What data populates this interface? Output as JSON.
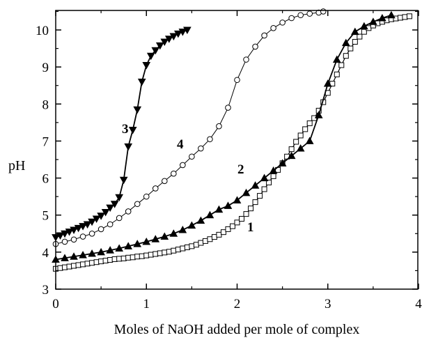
{
  "chart_data": {
    "type": "line",
    "xlabel": "Moles of NaOH added per mole of complex",
    "ylabel": "pH",
    "xlim": [
      0,
      4
    ],
    "ylim": [
      3,
      10.5
    ],
    "x_ticks": [
      "0",
      "1",
      "2",
      "3",
      "4"
    ],
    "y_ticks": [
      "3",
      "4",
      "5",
      "6",
      "7",
      "8",
      "9",
      "10"
    ],
    "grid": false,
    "series": [
      {
        "name": "1",
        "marker": "open-square",
        "color": "#000000",
        "x": [
          0.0,
          0.05,
          0.1,
          0.15,
          0.2,
          0.25,
          0.3,
          0.35,
          0.4,
          0.45,
          0.5,
          0.55,
          0.6,
          0.65,
          0.7,
          0.75,
          0.8,
          0.85,
          0.9,
          0.95,
          1.0,
          1.05,
          1.1,
          1.15,
          1.2,
          1.25,
          1.3,
          1.35,
          1.4,
          1.45,
          1.5,
          1.55,
          1.6,
          1.65,
          1.7,
          1.75,
          1.8,
          1.85,
          1.9,
          1.95,
          2.0,
          2.05,
          2.1,
          2.15,
          2.2,
          2.25,
          2.3,
          2.35,
          2.4,
          2.45,
          2.5,
          2.55,
          2.6,
          2.65,
          2.7,
          2.75,
          2.8,
          2.85,
          2.9,
          2.95,
          3.0,
          3.05,
          3.1,
          3.15,
          3.2,
          3.25,
          3.3,
          3.35,
          3.4,
          3.45,
          3.5,
          3.55,
          3.6,
          3.65,
          3.7,
          3.75,
          3.8,
          3.85,
          3.9
        ],
        "y": [
          3.55,
          3.57,
          3.59,
          3.61,
          3.63,
          3.65,
          3.67,
          3.69,
          3.71,
          3.73,
          3.75,
          3.77,
          3.79,
          3.81,
          3.82,
          3.83,
          3.85,
          3.86,
          3.88,
          3.89,
          3.91,
          3.93,
          3.95,
          3.97,
          3.99,
          4.01,
          4.04,
          4.07,
          4.1,
          4.13,
          4.16,
          4.2,
          4.25,
          4.3,
          4.35,
          4.41,
          4.47,
          4.54,
          4.62,
          4.7,
          4.8,
          4.9,
          5.03,
          5.18,
          5.35,
          5.52,
          5.7,
          5.88,
          6.05,
          6.22,
          6.4,
          6.58,
          6.78,
          6.98,
          7.15,
          7.32,
          7.48,
          7.62,
          7.82,
          8.05,
          8.3,
          8.55,
          8.8,
          9.05,
          9.3,
          9.5,
          9.68,
          9.82,
          9.95,
          10.05,
          10.12,
          10.18,
          10.22,
          10.26,
          10.29,
          10.31,
          10.33,
          10.35,
          10.37
        ]
      },
      {
        "name": "2",
        "marker": "filled-triangle-up",
        "color": "#000000",
        "x": [
          0.0,
          0.1,
          0.2,
          0.3,
          0.4,
          0.5,
          0.6,
          0.7,
          0.8,
          0.9,
          1.0,
          1.1,
          1.2,
          1.3,
          1.4,
          1.5,
          1.6,
          1.7,
          1.8,
          1.9,
          2.0,
          2.1,
          2.2,
          2.3,
          2.4,
          2.5,
          2.6,
          2.7,
          2.8,
          2.9,
          3.0,
          3.1,
          3.2,
          3.3,
          3.4,
          3.5,
          3.6,
          3.7
        ],
        "y": [
          3.8,
          3.84,
          3.88,
          3.92,
          3.96,
          4.0,
          4.05,
          4.1,
          4.16,
          4.22,
          4.28,
          4.35,
          4.42,
          4.5,
          4.6,
          4.72,
          4.85,
          5.0,
          5.15,
          5.25,
          5.4,
          5.6,
          5.8,
          6.0,
          6.2,
          6.4,
          6.6,
          6.8,
          7.0,
          7.7,
          8.55,
          9.2,
          9.65,
          9.95,
          10.1,
          10.22,
          10.32,
          10.4
        ]
      },
      {
        "name": "3",
        "marker": "filled-triangle-down",
        "color": "#000000",
        "x": [
          0.0,
          0.05,
          0.1,
          0.15,
          0.2,
          0.25,
          0.3,
          0.35,
          0.4,
          0.45,
          0.5,
          0.55,
          0.6,
          0.65,
          0.7,
          0.75,
          0.8,
          0.85,
          0.9,
          0.95,
          1.0,
          1.05,
          1.1,
          1.15,
          1.2,
          1.25,
          1.3,
          1.35,
          1.4,
          1.45
        ],
        "y": [
          4.4,
          4.45,
          4.5,
          4.55,
          4.6,
          4.65,
          4.7,
          4.75,
          4.82,
          4.9,
          4.98,
          5.08,
          5.2,
          5.3,
          5.48,
          5.95,
          6.85,
          7.3,
          7.85,
          8.6,
          9.05,
          9.3,
          9.45,
          9.58,
          9.68,
          9.76,
          9.83,
          9.9,
          9.95,
          10.0
        ]
      },
      {
        "name": "4",
        "marker": "open-circle",
        "color": "#000000",
        "x": [
          0.0,
          0.1,
          0.2,
          0.3,
          0.4,
          0.5,
          0.6,
          0.7,
          0.8,
          0.9,
          1.0,
          1.1,
          1.2,
          1.3,
          1.4,
          1.5,
          1.6,
          1.7,
          1.8,
          1.9,
          2.0,
          2.1,
          2.2,
          2.3,
          2.4,
          2.5,
          2.6,
          2.7,
          2.8,
          2.9,
          2.95
        ],
        "y": [
          4.22,
          4.28,
          4.34,
          4.42,
          4.5,
          4.62,
          4.75,
          4.92,
          5.1,
          5.3,
          5.5,
          5.72,
          5.92,
          6.12,
          6.35,
          6.58,
          6.8,
          7.05,
          7.4,
          7.9,
          8.65,
          9.2,
          9.55,
          9.85,
          10.05,
          10.2,
          10.32,
          10.4,
          10.44,
          10.47,
          10.5
        ]
      }
    ]
  }
}
